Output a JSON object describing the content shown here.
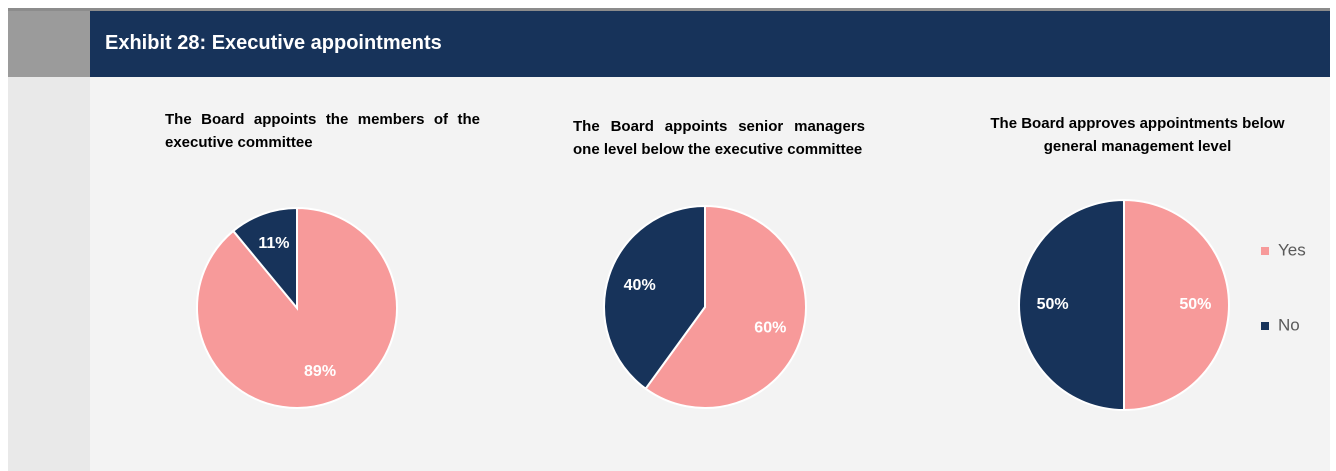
{
  "header": {
    "title": "Exhibit 28: Executive appointments"
  },
  "legend": {
    "labels": [
      "Yes",
      "No"
    ],
    "colors": [
      "#f79a9a",
      "#17335a"
    ],
    "position": "right"
  },
  "chart_data": [
    {
      "type": "pie",
      "title": "The Board appoints the members of the executive committee",
      "values": [
        89,
        11
      ],
      "value_labels": [
        "89%",
        "11%"
      ]
    },
    {
      "type": "pie",
      "title": "The Board appoints senior managers one level below the executive committee",
      "values": [
        60,
        40
      ],
      "value_labels": [
        "60%",
        "40%"
      ]
    },
    {
      "type": "pie",
      "title": "The Board approves appointments below general management level",
      "values": [
        50,
        50
      ],
      "value_labels": [
        "50%",
        "50%"
      ]
    }
  ]
}
